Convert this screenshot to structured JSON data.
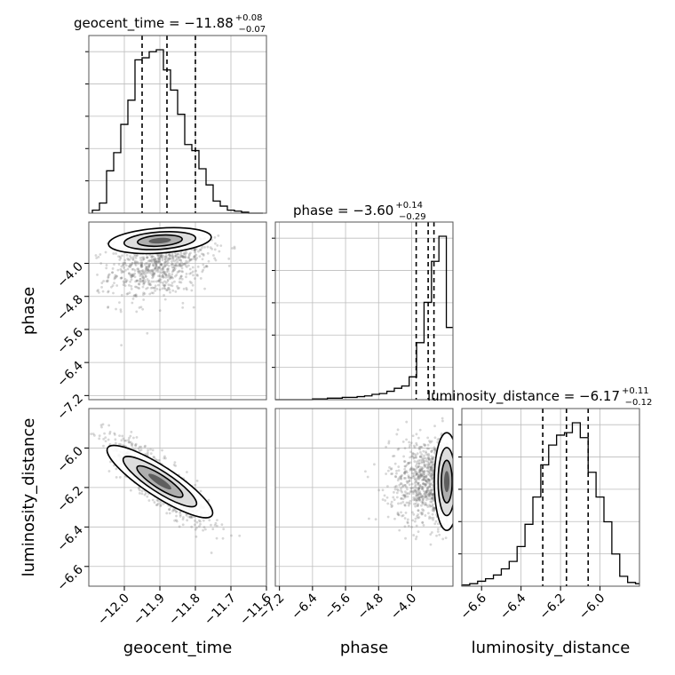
{
  "chart_data": {
    "type": "corner",
    "parameters": [
      "geocent_time",
      "phase",
      "luminosity_distance"
    ],
    "axis_labels": {
      "geocent_time": "geocent_time",
      "phase": "phase",
      "luminosity_distance": "luminosity_distance"
    },
    "ranges": {
      "geocent_time": [
        -12.1,
        -11.6
      ],
      "phase": [
        -7.3,
        -3.0
      ],
      "luminosity_distance": [
        -6.7,
        -5.8
      ]
    },
    "ticks": {
      "geocent_time": [
        "−12.0",
        "−11.9",
        "−11.8",
        "−11.7",
        "−11.6"
      ],
      "phase": [
        "−7.2",
        "−6.4",
        "−5.6",
        "−4.8",
        "−4.0"
      ],
      "luminosity_distance": [
        "−6.6",
        "−6.4",
        "−6.2",
        "−6.0"
      ]
    },
    "tick_values": {
      "geocent_time": [
        -12.0,
        -11.9,
        -11.8,
        -11.7,
        -11.6
      ],
      "phase": [
        -7.2,
        -6.4,
        -5.6,
        -4.8,
        -4.0
      ],
      "luminosity_distance": [
        -6.6,
        -6.4,
        -6.2,
        -6.0
      ]
    },
    "titles": [
      {
        "param": "geocent_time",
        "text": "geocent_time = −11.88",
        "plus": "+0.08",
        "minus": "−0.07"
      },
      {
        "param": "phase",
        "text": "phase = −3.60",
        "plus": "+0.14",
        "minus": "−0.29"
      },
      {
        "param": "luminosity_distance",
        "text": "luminosity_distance = −6.17",
        "plus": "+0.11",
        "minus": "−0.12"
      }
    ],
    "quantiles": {
      "geocent_time": [
        -11.95,
        -11.88,
        -11.8
      ],
      "phase": [
        -3.89,
        -3.6,
        -3.46
      ],
      "luminosity_distance": [
        -6.29,
        -6.17,
        -6.06
      ]
    },
    "histograms": {
      "geocent_time": {
        "bin_edges": [
          -12.09,
          -12.07,
          -12.05,
          -12.03,
          -12.01,
          -11.99,
          -11.97,
          -11.95,
          -11.93,
          -11.91,
          -11.89,
          -11.87,
          -11.85,
          -11.83,
          -11.81,
          -11.79,
          -11.77,
          -11.75,
          -11.73,
          -11.71,
          -11.69,
          -11.67,
          -11.65,
          -11.63,
          -11.61
        ],
        "counts": [
          3,
          10,
          42,
          60,
          88,
          112,
          152,
          154,
          160,
          162,
          142,
          122,
          98,
          68,
          62,
          44,
          28,
          12,
          7,
          3,
          2,
          1,
          0,
          0
        ]
      },
      "phase": {
        "bin_edges": [
          -7.3,
          -7.12,
          -6.94,
          -6.76,
          -6.58,
          -6.4,
          -6.22,
          -6.04,
          -5.86,
          -5.68,
          -5.5,
          -5.32,
          -5.14,
          -4.96,
          -4.78,
          -4.6,
          -4.42,
          -4.24,
          -4.06,
          -3.88,
          -3.7,
          -3.52,
          -3.34,
          -3.16,
          -3.0
        ],
        "counts": [
          0,
          0,
          0,
          0,
          0,
          1,
          1,
          2,
          2,
          3,
          3,
          4,
          5,
          7,
          8,
          11,
          15,
          18,
          30,
          75,
          128,
          182,
          215,
          95
        ]
      },
      "luminosity_distance": {
        "bin_edges": [
          -6.7,
          -6.66,
          -6.62,
          -6.58,
          -6.54,
          -6.5,
          -6.46,
          -6.42,
          -6.38,
          -6.34,
          -6.3,
          -6.26,
          -6.22,
          -6.18,
          -6.14,
          -6.1,
          -6.06,
          -6.02,
          -5.98,
          -5.94,
          -5.9,
          -5.86,
          -5.82,
          -5.8
        ],
        "counts": [
          1,
          2,
          4,
          6,
          9,
          14,
          20,
          32,
          50,
          72,
          98,
          114,
          122,
          124,
          132,
          120,
          92,
          72,
          52,
          26,
          8,
          3,
          2
        ]
      }
    },
    "density_2d": {
      "phase_vs_geocent_time": {
        "x_mean": -11.9,
        "y_mean": -3.8,
        "x_std": 0.07,
        "y_std": 0.35,
        "rho": 0.3
      },
      "luminosity_distance_vs_geocent_time": {
        "x_mean": -11.9,
        "y_mean": -6.17,
        "x_std": 0.07,
        "y_std": 0.11,
        "rho": -0.85
      },
      "luminosity_distance_vs_phase": {
        "x_mean": -3.5,
        "y_mean": -6.17,
        "x_std": 0.4,
        "y_std": 0.11,
        "rho": 0.0
      }
    },
    "colors": {
      "line": "#000000",
      "quantile": "#000000",
      "grid": "#bdbdbd",
      "points": "#6f6f6f"
    }
  }
}
